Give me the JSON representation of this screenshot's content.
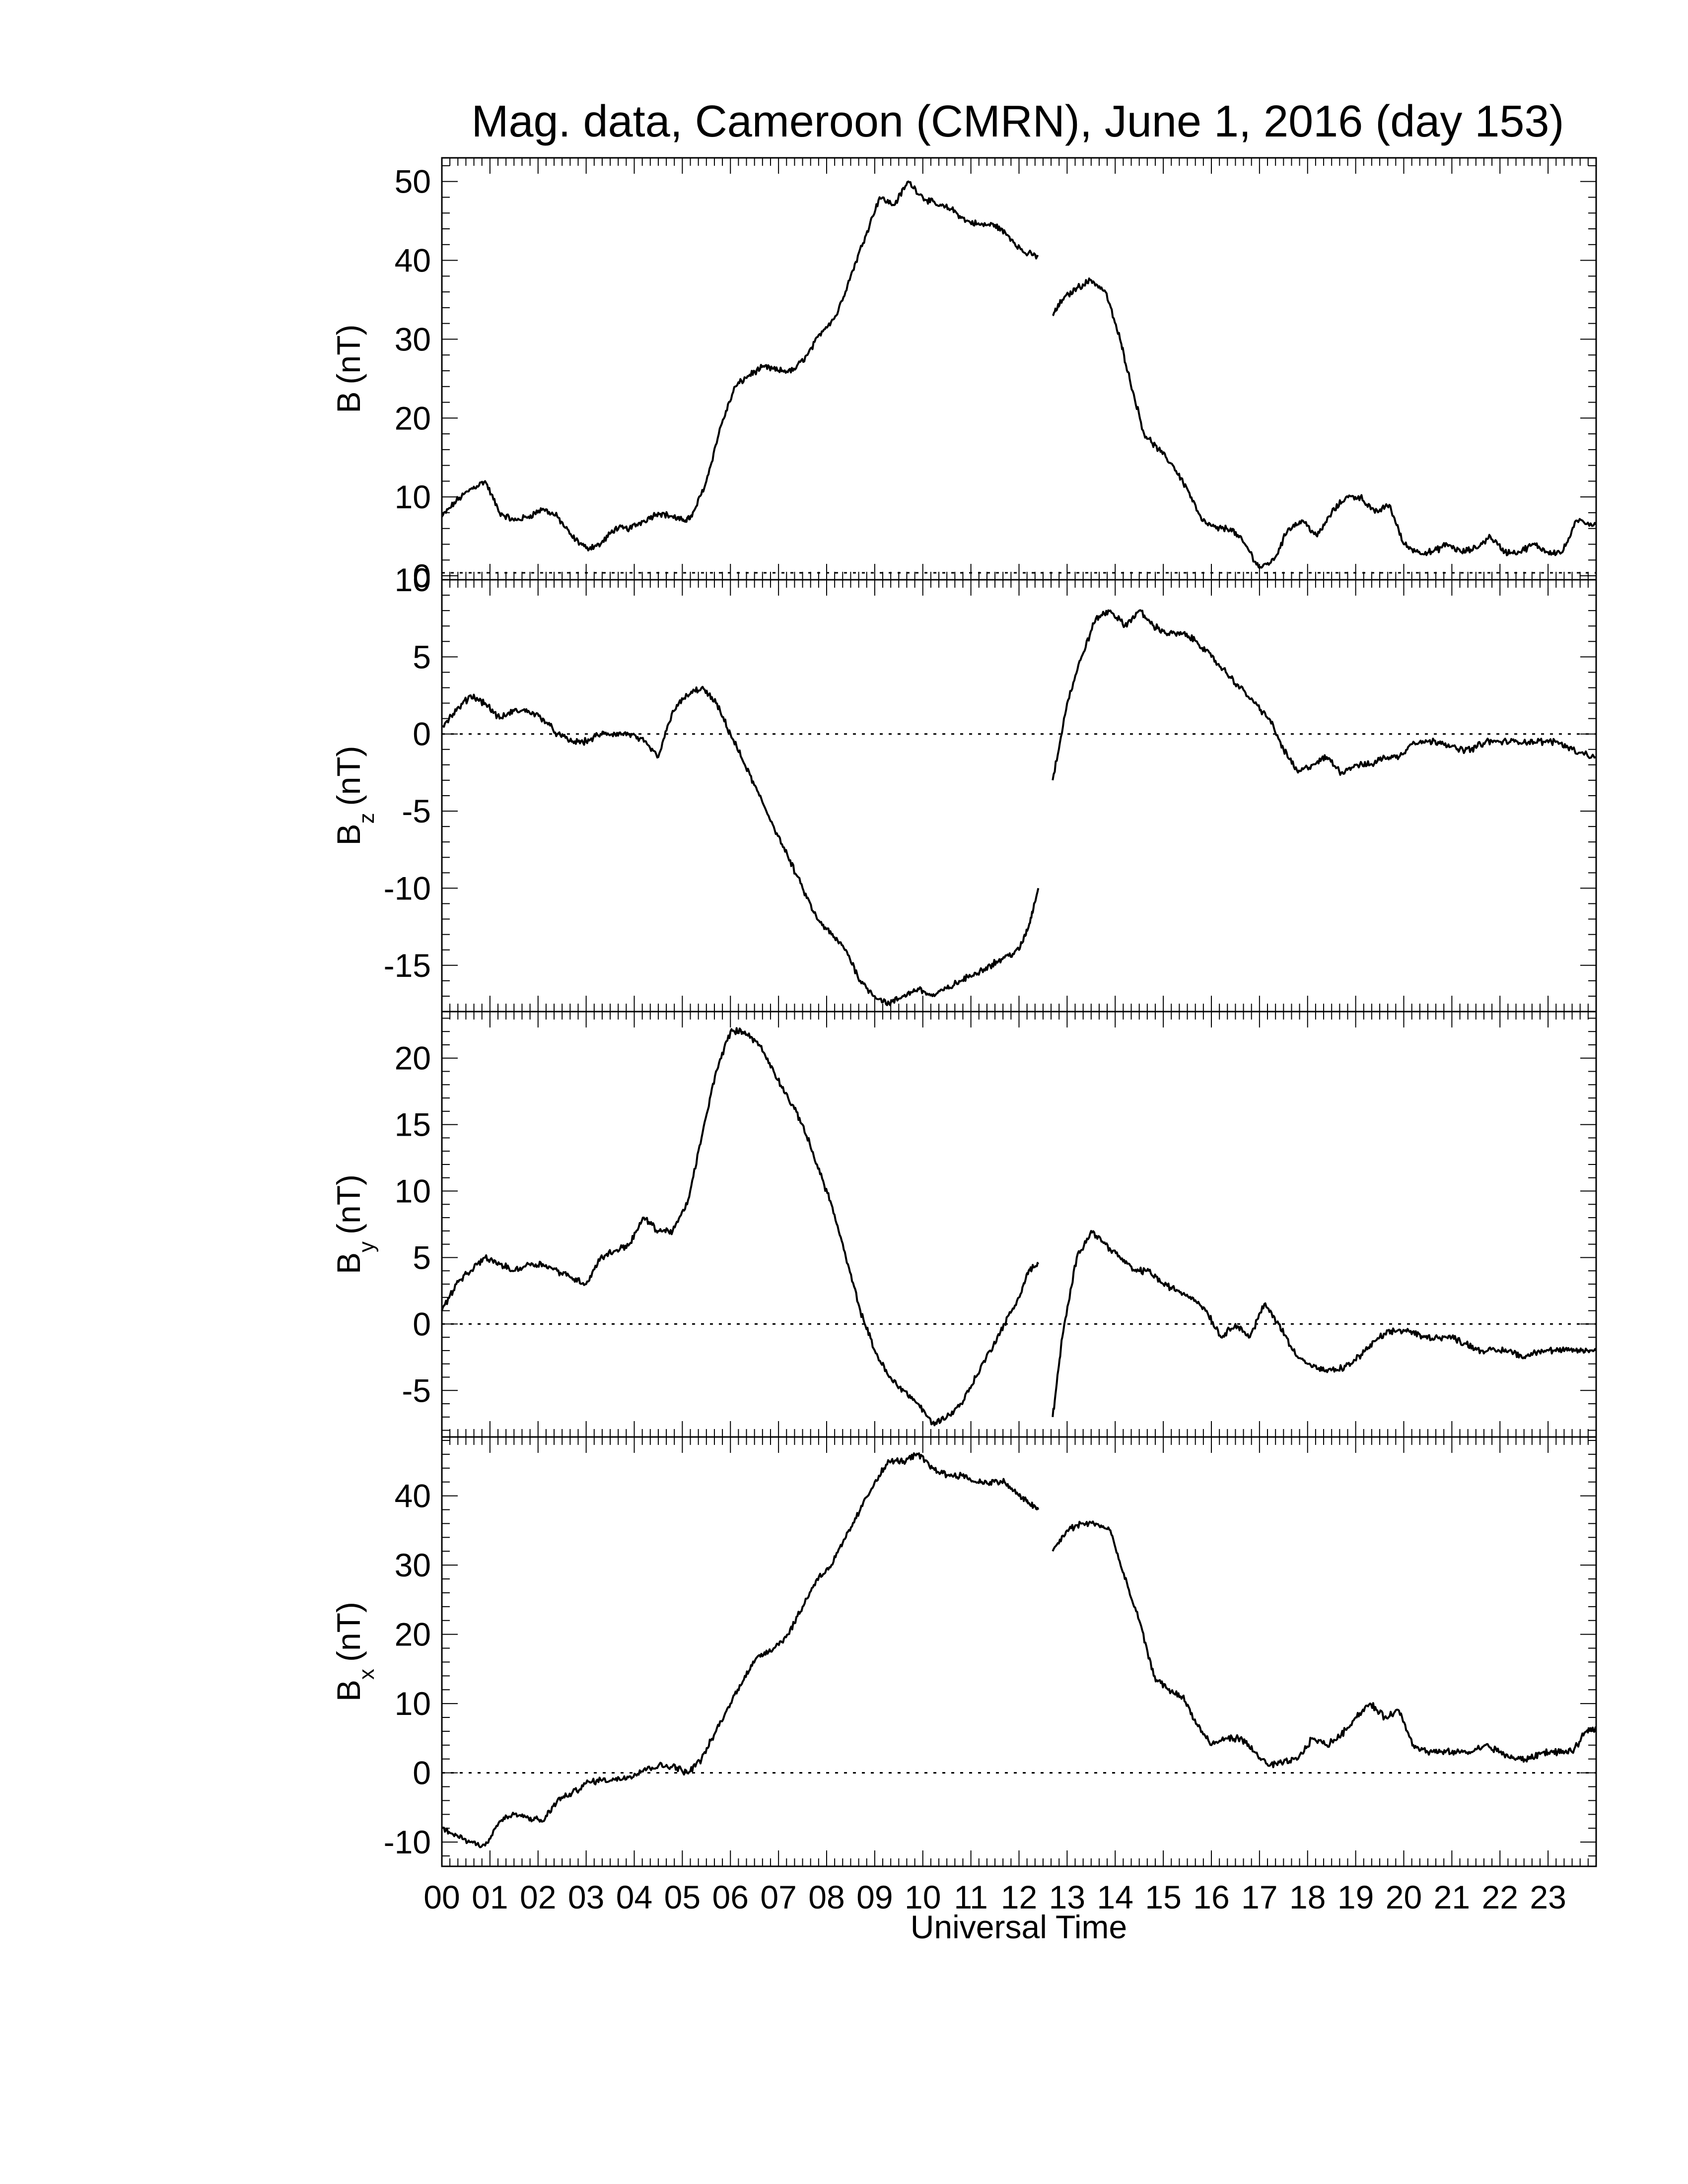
{
  "chart_data": {
    "type": "line",
    "title": "Mag. data, Cameroon (CMRN), June 1, 2016 (day 153)",
    "xlabel": "Universal Time",
    "x_tick_labels": [
      "00",
      "01",
      "02",
      "03",
      "04",
      "05",
      "06",
      "07",
      "08",
      "09",
      "10",
      "11",
      "12",
      "13",
      "14",
      "15",
      "16",
      "17",
      "18",
      "19",
      "20",
      "21",
      "22",
      "23"
    ],
    "xlim": [
      0,
      24
    ],
    "data_gap_hours": [
      12.4,
      12.7
    ],
    "grid": false,
    "line_color": "#000000",
    "panels": [
      {
        "id": "B",
        "label_main": "B",
        "label_sub": "",
        "label_unit": "(nT)",
        "ylim": [
          -0.5,
          53
        ],
        "yticks": [
          0,
          10,
          20,
          30,
          40,
          50
        ],
        "zero_line": false,
        "series": {
          "x": [
            0,
            0.3,
            0.6,
            0.9,
            1.2,
            1.5,
            1.8,
            2.1,
            2.4,
            2.7,
            3.0,
            3.3,
            3.6,
            3.9,
            4.2,
            4.5,
            4.8,
            5.0,
            5.2,
            5.5,
            5.8,
            6.1,
            6.4,
            6.7,
            7.0,
            7.3,
            7.6,
            7.9,
            8.2,
            8.5,
            8.8,
            9.1,
            9.4,
            9.7,
            10.0,
            10.3,
            10.6,
            10.9,
            11.2,
            11.5,
            11.8,
            12.1,
            12.4,
            12.7,
            12.9,
            13.2,
            13.5,
            13.8,
            14.1,
            14.3,
            14.6,
            14.9,
            15.2,
            15.5,
            15.8,
            16.1,
            16.4,
            16.7,
            17.0,
            17.3,
            17.6,
            17.9,
            18.2,
            18.5,
            18.8,
            19.1,
            19.4,
            19.7,
            20.0,
            20.3,
            20.6,
            20.9,
            21.2,
            21.5,
            21.8,
            22.1,
            22.4,
            22.7,
            23.0,
            23.3,
            23.6,
            24.0
          ],
          "y": [
            7.5,
            9.5,
            11,
            12,
            8,
            7,
            7.5,
            8.5,
            7.5,
            5,
            3.5,
            4,
            6,
            6,
            7,
            8,
            7.5,
            7,
            7.5,
            12,
            19,
            24,
            25.5,
            26.5,
            26,
            26,
            28,
            31,
            33,
            38,
            43,
            48,
            47,
            50,
            48,
            47,
            46.5,
            45,
            44.5,
            44.5,
            43,
            41,
            40.5,
            33,
            35,
            36.5,
            37.5,
            36,
            30,
            25,
            18,
            16,
            14,
            11,
            7,
            6,
            6,
            4,
            1,
            2,
            6,
            7,
            5,
            8,
            10,
            10,
            8,
            9,
            4,
            3,
            3,
            4,
            3,
            3.5,
            5,
            3,
            3,
            4,
            3,
            3,
            7,
            6.5
          ]
        }
      },
      {
        "id": "Bz",
        "label_main": "B",
        "label_sub": "z",
        "label_unit": "(nT)",
        "ylim": [
          -18,
          10
        ],
        "yticks": [
          -15,
          -10,
          -5,
          0,
          5,
          10
        ],
        "zero_line": true,
        "series": {
          "x": [
            0,
            0.3,
            0.6,
            0.9,
            1.2,
            1.5,
            1.8,
            2.1,
            2.4,
            2.7,
            3.0,
            3.3,
            3.6,
            3.9,
            4.2,
            4.5,
            4.8,
            5.1,
            5.4,
            5.7,
            6.0,
            6.3,
            6.6,
            6.9,
            7.2,
            7.5,
            7.8,
            8.1,
            8.4,
            8.7,
            9.0,
            9.3,
            9.6,
            9.9,
            10.2,
            10.5,
            10.8,
            11.1,
            11.4,
            11.7,
            12.0,
            12.2,
            12.4,
            12.7,
            13.0,
            13.3,
            13.6,
            13.9,
            14.2,
            14.5,
            14.8,
            15.1,
            15.4,
            15.7,
            16.0,
            16.3,
            16.6,
            16.9,
            17.2,
            17.5,
            17.8,
            18.1,
            18.4,
            18.7,
            19.0,
            19.3,
            19.6,
            19.9,
            20.2,
            20.5,
            20.8,
            21.1,
            21.4,
            21.7,
            22.0,
            22.3,
            22.6,
            22.9,
            23.2,
            23.5,
            24.0
          ],
          "y": [
            0.5,
            1.5,
            2.5,
            2,
            1,
            1.5,
            1.5,
            1,
            0,
            -0.5,
            -0.5,
            0,
            0,
            0,
            -0.5,
            -1.5,
            1.5,
            2.5,
            3,
            2,
            0,
            -2,
            -4,
            -6,
            -8,
            -10,
            -12,
            -13,
            -14,
            -16,
            -17,
            -17.5,
            -17,
            -16.5,
            -17,
            -16.5,
            -16,
            -15.5,
            -15,
            -14.5,
            -14,
            -12.5,
            -10,
            -3,
            2,
            5,
            7.5,
            8,
            7,
            8,
            7,
            6.5,
            6.5,
            6,
            5,
            4,
            3,
            2,
            1,
            -1,
            -2.5,
            -2,
            -1.5,
            -2.5,
            -2,
            -2,
            -1.5,
            -1.5,
            -0.5,
            -0.5,
            -0.5,
            -1,
            -1,
            -0.5,
            -0.5,
            -0.5,
            -0.5,
            -0.5,
            -0.5,
            -1,
            -1.5
          ]
        }
      },
      {
        "id": "By",
        "label_main": "B",
        "label_sub": "y",
        "label_unit": "(nT)",
        "ylim": [
          -8.5,
          23.5
        ],
        "yticks": [
          -5,
          0,
          5,
          10,
          15,
          20
        ],
        "zero_line": true,
        "series": {
          "x": [
            0,
            0.3,
            0.6,
            0.9,
            1.2,
            1.5,
            1.8,
            2.1,
            2.4,
            2.7,
            3.0,
            3.3,
            3.6,
            3.9,
            4.2,
            4.5,
            4.8,
            5.1,
            5.4,
            5.7,
            6.0,
            6.3,
            6.6,
            6.9,
            7.2,
            7.5,
            7.8,
            8.1,
            8.4,
            8.7,
            9.0,
            9.3,
            9.6,
            9.9,
            10.2,
            10.5,
            10.8,
            11.1,
            11.4,
            11.7,
            12.0,
            12.2,
            12.4,
            12.7,
            12.9,
            13.2,
            13.5,
            13.8,
            14.1,
            14.4,
            14.7,
            15.0,
            15.3,
            15.6,
            15.9,
            16.2,
            16.5,
            16.8,
            17.1,
            17.4,
            17.7,
            18.0,
            18.3,
            18.6,
            18.9,
            19.2,
            19.5,
            19.8,
            20.1,
            20.4,
            20.7,
            21.0,
            21.3,
            21.6,
            21.9,
            22.2,
            22.5,
            22.8,
            23.1,
            23.4,
            23.7,
            24.0
          ],
          "y": [
            1,
            3,
            4,
            5,
            4.5,
            4,
            4.5,
            4.5,
            4,
            3.5,
            3,
            5,
            5.5,
            6,
            8,
            7,
            7,
            9,
            14,
            19,
            22,
            22,
            21,
            19,
            17,
            15,
            12,
            9,
            5,
            1,
            -2,
            -4,
            -5,
            -6,
            -7.5,
            -7,
            -6,
            -4,
            -2,
            0,
            2,
            4,
            4.5,
            -7,
            -1,
            5,
            7,
            6,
            5,
            4,
            4,
            3,
            2.5,
            2,
            1,
            -1,
            0,
            -1,
            1.5,
            0,
            -2,
            -3,
            -3.5,
            -3.5,
            -3,
            -2,
            -1,
            -0.5,
            -0.5,
            -1,
            -1,
            -1,
            -1.5,
            -2,
            -2,
            -2,
            -2.5,
            -2,
            -2,
            -2,
            -2,
            -2
          ]
        }
      },
      {
        "id": "Bx",
        "label_main": "B",
        "label_sub": "x",
        "label_unit": "(nT)",
        "ylim": [
          -13.5,
          48.5
        ],
        "yticks": [
          -10,
          0,
          10,
          20,
          30,
          40
        ],
        "zero_line": true,
        "series": {
          "x": [
            0,
            0.3,
            0.6,
            0.9,
            1.2,
            1.5,
            1.8,
            2.1,
            2.4,
            2.7,
            3.0,
            3.3,
            3.6,
            3.9,
            4.2,
            4.5,
            4.8,
            5.1,
            5.4,
            5.7,
            6.0,
            6.3,
            6.6,
            6.9,
            7.2,
            7.5,
            7.8,
            8.1,
            8.4,
            8.7,
            9.0,
            9.3,
            9.6,
            9.9,
            10.2,
            10.5,
            10.8,
            11.1,
            11.4,
            11.7,
            12.0,
            12.2,
            12.4,
            12.7,
            13.0,
            13.3,
            13.6,
            13.9,
            14.2,
            14.5,
            14.8,
            15.1,
            15.4,
            15.7,
            16.0,
            16.3,
            16.6,
            16.9,
            17.2,
            17.5,
            17.8,
            18.1,
            18.4,
            18.7,
            19.0,
            19.3,
            19.6,
            19.9,
            20.2,
            20.5,
            20.8,
            21.1,
            21.4,
            21.7,
            22.0,
            22.3,
            22.6,
            22.9,
            23.2,
            23.5,
            23.8,
            24.0
          ],
          "y": [
            -8,
            -9,
            -10,
            -10.5,
            -7,
            -6,
            -6.5,
            -7,
            -4,
            -3,
            -1.5,
            -1,
            -1,
            -0.5,
            0.5,
            1,
            1,
            0,
            2,
            6,
            10,
            14,
            17,
            18,
            20,
            24,
            28,
            30,
            34,
            38,
            42,
            45,
            45,
            46,
            44,
            43,
            43,
            42,
            42,
            42,
            40,
            39,
            38,
            32,
            35,
            36,
            36,
            35,
            28,
            22,
            14,
            12,
            11,
            7,
            4,
            5,
            5,
            3,
            1,
            1.5,
            2,
            5,
            4,
            5.5,
            8,
            10,
            8,
            9,
            4,
            3,
            3,
            3,
            3,
            4,
            3,
            2,
            2,
            3,
            3,
            3,
            6,
            6.5
          ]
        }
      }
    ]
  }
}
